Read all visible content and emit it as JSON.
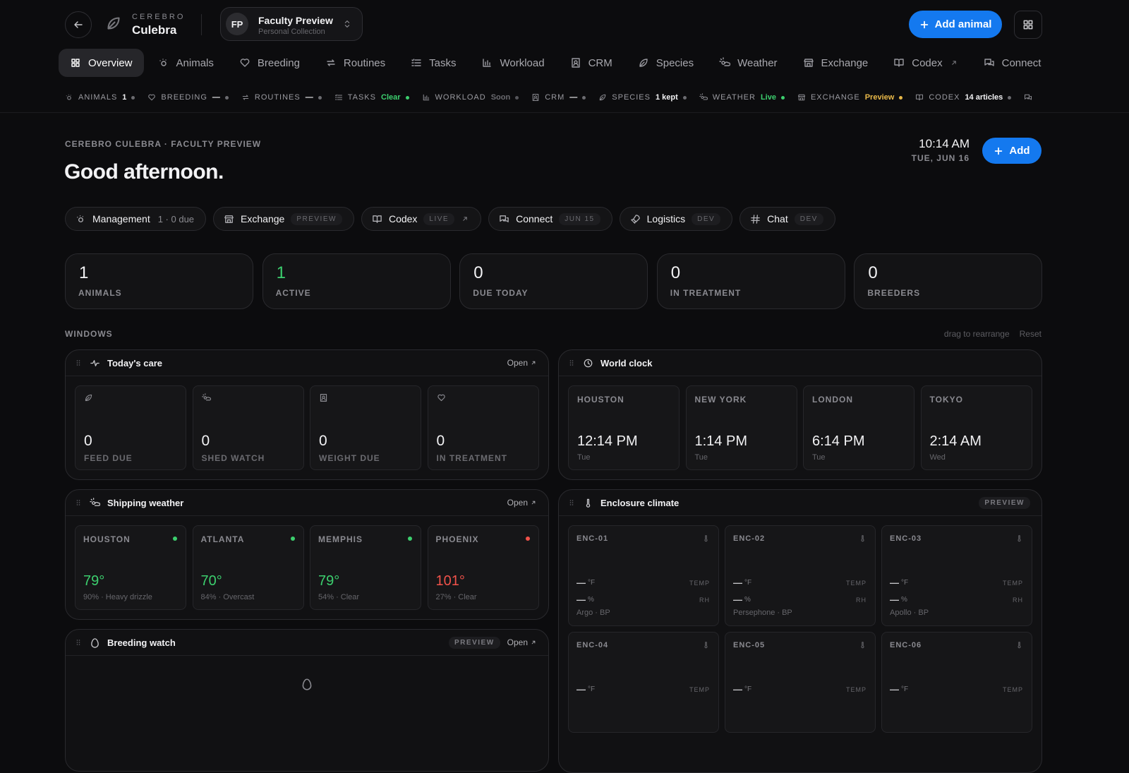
{
  "header": {
    "brand_small": "CEREBRO",
    "brand": "Culebra",
    "workspace": {
      "initials": "FP",
      "name": "Faculty Preview",
      "subtitle": "Personal Collection"
    },
    "add_button": "Add animal"
  },
  "nav": {
    "items": [
      "Overview",
      "Animals",
      "Breeding",
      "Routines",
      "Tasks",
      "Workload",
      "CRM",
      "Species",
      "Weather",
      "Exchange",
      "Codex",
      "Connect"
    ],
    "active": 0
  },
  "status": [
    {
      "label": "ANIMALS",
      "value": "1",
      "color": "#f2f2f4",
      "dot": "#6b6b70"
    },
    {
      "label": "BREEDING",
      "value": "—",
      "color": "#f2f2f4",
      "dot": "#6b6b70"
    },
    {
      "label": "ROUTINES",
      "value": "—",
      "color": "#f2f2f4",
      "dot": "#6b6b70"
    },
    {
      "label": "TASKS",
      "value": "Clear",
      "color": "#3ccf6e",
      "dot": "#3ccf6e"
    },
    {
      "label": "WORKLOAD",
      "value": "Soon",
      "color": "#6b6b70",
      "dot": "#55555a"
    },
    {
      "label": "CRM",
      "value": "—",
      "color": "#f2f2f4",
      "dot": "#6b6b70"
    },
    {
      "label": "SPECIES",
      "value": "1 kept",
      "color": "#f2f2f4",
      "dot": "#6b6b70"
    },
    {
      "label": "WEATHER",
      "value": "Live",
      "color": "#3ccf6e",
      "dot": "#3ccf6e"
    },
    {
      "label": "EXCHANGE",
      "value": "Preview",
      "color": "#e9b949",
      "dot": "#e9b949"
    },
    {
      "label": "CODEX",
      "value": "14 articles",
      "color": "#f2f2f4",
      "dot": "#6b6b70"
    }
  ],
  "hero": {
    "eyebrow": "CEREBRO CULEBRA · FACULTY PREVIEW",
    "greeting": "Good afternoon.",
    "time": "10:14 AM",
    "date": "TUE, JUN 16",
    "add_button": "Add"
  },
  "chips": [
    {
      "label": "Management",
      "tag": "1 · 0 due"
    },
    {
      "label": "Exchange",
      "tag": "PREVIEW"
    },
    {
      "label": "Codex",
      "tag": "LIVE"
    },
    {
      "label": "Connect",
      "tag": "JUN 15"
    },
    {
      "label": "Logistics",
      "tag": "DEV"
    },
    {
      "label": "Chat",
      "tag": "DEV"
    }
  ],
  "stats": [
    {
      "value": 1,
      "label": "ANIMALS",
      "color": "#f2f2f4"
    },
    {
      "value": 1,
      "label": "ACTIVE",
      "color": "#3ccf6e"
    },
    {
      "value": 0,
      "label": "DUE TODAY",
      "color": "#f2f2f4"
    },
    {
      "value": 0,
      "label": "IN TREATMENT",
      "color": "#f2f2f4"
    },
    {
      "value": 0,
      "label": "BREEDERS",
      "color": "#f2f2f4"
    }
  ],
  "windows_section": {
    "title": "WINDOWS",
    "hint": "drag to rearrange",
    "reset": "Reset"
  },
  "todays_care": {
    "title": "Today's care",
    "action": "Open",
    "cards": [
      {
        "value": 0,
        "label": "FEED DUE"
      },
      {
        "value": 0,
        "label": "SHED WATCH"
      },
      {
        "value": 0,
        "label": "WEIGHT DUE"
      },
      {
        "value": 0,
        "label": "IN TREATMENT"
      }
    ]
  },
  "world_clock": {
    "title": "World clock",
    "clocks": [
      {
        "city": "HOUSTON",
        "time": "12:14 PM",
        "day": "Tue"
      },
      {
        "city": "NEW YORK",
        "time": "1:14 PM",
        "day": "Tue"
      },
      {
        "city": "LONDON",
        "time": "6:14 PM",
        "day": "Tue"
      },
      {
        "city": "TOKYO",
        "time": "2:14 AM",
        "day": "Wed"
      }
    ]
  },
  "shipping_weather": {
    "title": "Shipping weather",
    "action": "Open",
    "cities": [
      {
        "city": "HOUSTON",
        "temp": "79°",
        "detail": "90% · Heavy drizzle",
        "color": "#3ccf6e"
      },
      {
        "city": "ATLANTA",
        "temp": "70°",
        "detail": "84% · Overcast",
        "color": "#3ccf6e"
      },
      {
        "city": "MEMPHIS",
        "temp": "79°",
        "detail": "54% · Clear",
        "color": "#3ccf6e"
      },
      {
        "city": "PHOENIX",
        "temp": "101°",
        "detail": "27% · Clear",
        "color": "#f0524a"
      }
    ]
  },
  "enclosure_climate": {
    "title": "Enclosure climate",
    "badge": "PREVIEW",
    "enclosures": [
      {
        "id": "ENC-01",
        "temp": "—",
        "temp_unit": "°F",
        "temp_label": "TEMP",
        "rh": "—",
        "rh_unit": "%",
        "rh_label": "RH",
        "animal": "Argo · BP"
      },
      {
        "id": "ENC-02",
        "temp": "—",
        "temp_unit": "°F",
        "temp_label": "TEMP",
        "rh": "—",
        "rh_unit": "%",
        "rh_label": "RH",
        "animal": "Persephone · BP"
      },
      {
        "id": "ENC-03",
        "temp": "—",
        "temp_unit": "°F",
        "temp_label": "TEMP",
        "rh": "—",
        "rh_unit": "%",
        "rh_label": "RH",
        "animal": "Apollo · BP"
      },
      {
        "id": "ENC-04",
        "temp": "—",
        "temp_unit": "°F",
        "temp_label": "TEMP"
      },
      {
        "id": "ENC-05",
        "temp": "—",
        "temp_unit": "°F",
        "temp_label": "TEMP"
      },
      {
        "id": "ENC-06",
        "temp": "—",
        "temp_unit": "°F",
        "temp_label": "TEMP"
      }
    ]
  },
  "breeding_watch": {
    "title": "Breeding watch",
    "badge": "PREVIEW",
    "action": "Open"
  }
}
